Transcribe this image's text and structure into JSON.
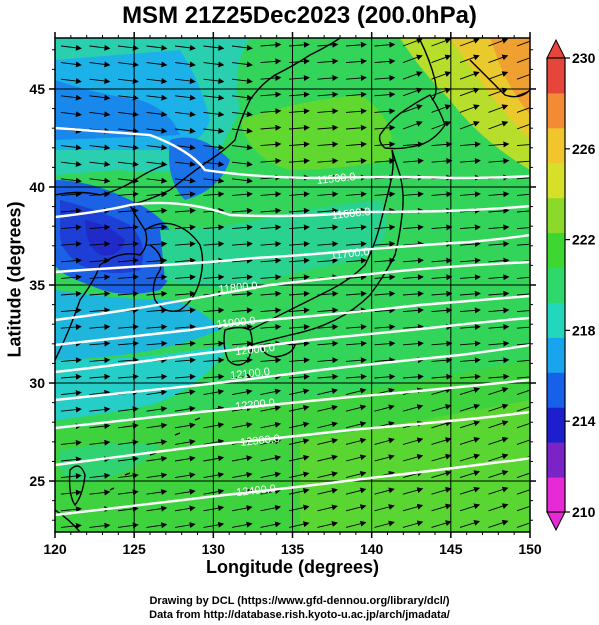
{
  "title": "MSM 21Z25Dec2023 (200.0hPa)",
  "x_axis": {
    "label": "Longitude (degrees)",
    "ticks": [
      "120",
      "125",
      "130",
      "135",
      "140",
      "145",
      "150"
    ],
    "range": [
      120,
      150
    ]
  },
  "y_axis": {
    "label": "Latitude  (degrees)",
    "ticks": [
      "25",
      "30",
      "35",
      "40",
      "45"
    ],
    "range": [
      22.4,
      47.6
    ]
  },
  "colorbar": {
    "min": 210,
    "max": 230,
    "tick_labels": [
      "230",
      "226",
      "222",
      "218",
      "214",
      "210"
    ],
    "colors": [
      "#e52ad6",
      "#7a24c8",
      "#1d1fcf",
      "#1660ea",
      "#19a5ee",
      "#23d7bd",
      "#2fd86b",
      "#3ed631",
      "#8bda2a",
      "#d7e028",
      "#f1c62c",
      "#f38a34",
      "#e5453a"
    ]
  },
  "contours": [
    {
      "label": "11500.0"
    },
    {
      "label": "11600.0"
    },
    {
      "label": "11700.0"
    },
    {
      "label": "11800.0"
    },
    {
      "label": "11900.0"
    },
    {
      "label": "12000.0"
    },
    {
      "label": "12100.0"
    },
    {
      "label": "12200.0"
    },
    {
      "label": "12300.0"
    },
    {
      "label": "12400.0"
    }
  ],
  "credits": [
    "Drawing by DCL (https://www.gfd-dennou.org/library/dcl/)",
    "Data from http://database.rish.kyoto-u.ac.jp/arch/jmadata/"
  ]
}
